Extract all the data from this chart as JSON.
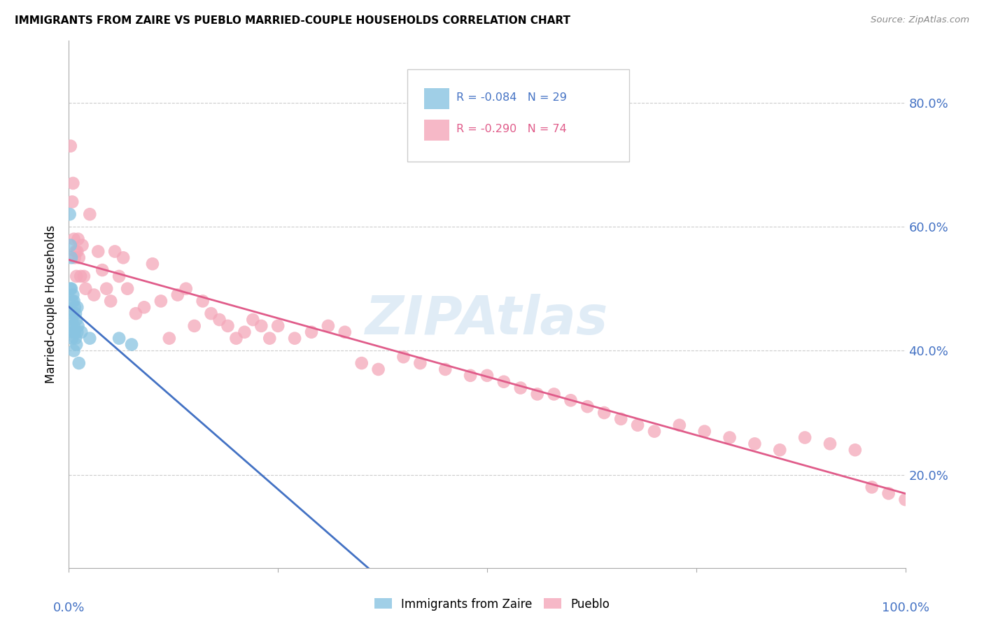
{
  "title": "IMMIGRANTS FROM ZAIRE VS PUEBLO MARRIED-COUPLE HOUSEHOLDS CORRELATION CHART",
  "source": "Source: ZipAtlas.com",
  "ylabel": "Married-couple Households",
  "y_ticks": [
    0.2,
    0.4,
    0.6,
    0.8
  ],
  "y_tick_labels": [
    "20.0%",
    "40.0%",
    "60.0%",
    "80.0%"
  ],
  "watermark": "ZIPAtlas",
  "blue_color": "#89c4e1",
  "pink_color": "#f4a7b9",
  "blue_line_color": "#4472c4",
  "pink_line_color": "#e05c8a",
  "dashed_line_color": "#89c4e1",
  "grid_color": "#cccccc",
  "bg_color": "#ffffff",
  "axis_label_color": "#4472c4",
  "blue_scatter_x": [
    0.001,
    0.002,
    0.002,
    0.003,
    0.003,
    0.003,
    0.004,
    0.004,
    0.004,
    0.005,
    0.005,
    0.005,
    0.006,
    0.006,
    0.006,
    0.007,
    0.007,
    0.008,
    0.008,
    0.009,
    0.009,
    0.01,
    0.01,
    0.011,
    0.012,
    0.015,
    0.025,
    0.06,
    0.075
  ],
  "blue_scatter_y": [
    0.62,
    0.57,
    0.5,
    0.55,
    0.5,
    0.44,
    0.48,
    0.45,
    0.42,
    0.49,
    0.46,
    0.43,
    0.48,
    0.44,
    0.4,
    0.47,
    0.43,
    0.46,
    0.42,
    0.45,
    0.41,
    0.47,
    0.43,
    0.44,
    0.38,
    0.43,
    0.42,
    0.42,
    0.41
  ],
  "pink_scatter_x": [
    0.002,
    0.004,
    0.005,
    0.006,
    0.007,
    0.008,
    0.009,
    0.01,
    0.011,
    0.012,
    0.014,
    0.016,
    0.018,
    0.02,
    0.025,
    0.03,
    0.035,
    0.04,
    0.045,
    0.05,
    0.055,
    0.06,
    0.065,
    0.07,
    0.08,
    0.09,
    0.1,
    0.11,
    0.12,
    0.13,
    0.14,
    0.15,
    0.16,
    0.17,
    0.18,
    0.19,
    0.2,
    0.21,
    0.22,
    0.23,
    0.24,
    0.25,
    0.27,
    0.29,
    0.31,
    0.33,
    0.35,
    0.37,
    0.4,
    0.42,
    0.45,
    0.48,
    0.5,
    0.52,
    0.54,
    0.56,
    0.58,
    0.6,
    0.62,
    0.64,
    0.66,
    0.68,
    0.7,
    0.73,
    0.76,
    0.79,
    0.82,
    0.85,
    0.88,
    0.91,
    0.94,
    0.96,
    0.98,
    1.0
  ],
  "pink_scatter_y": [
    0.73,
    0.64,
    0.67,
    0.58,
    0.55,
    0.56,
    0.52,
    0.56,
    0.58,
    0.55,
    0.52,
    0.57,
    0.52,
    0.5,
    0.62,
    0.49,
    0.56,
    0.53,
    0.5,
    0.48,
    0.56,
    0.52,
    0.55,
    0.5,
    0.46,
    0.47,
    0.54,
    0.48,
    0.42,
    0.49,
    0.5,
    0.44,
    0.48,
    0.46,
    0.45,
    0.44,
    0.42,
    0.43,
    0.45,
    0.44,
    0.42,
    0.44,
    0.42,
    0.43,
    0.44,
    0.43,
    0.38,
    0.37,
    0.39,
    0.38,
    0.37,
    0.36,
    0.36,
    0.35,
    0.34,
    0.33,
    0.33,
    0.32,
    0.31,
    0.3,
    0.29,
    0.28,
    0.27,
    0.28,
    0.27,
    0.26,
    0.25,
    0.24,
    0.26,
    0.25,
    0.24,
    0.18,
    0.17,
    0.16
  ],
  "xlim": [
    0.0,
    1.0
  ],
  "ylim": [
    0.05,
    0.9
  ]
}
